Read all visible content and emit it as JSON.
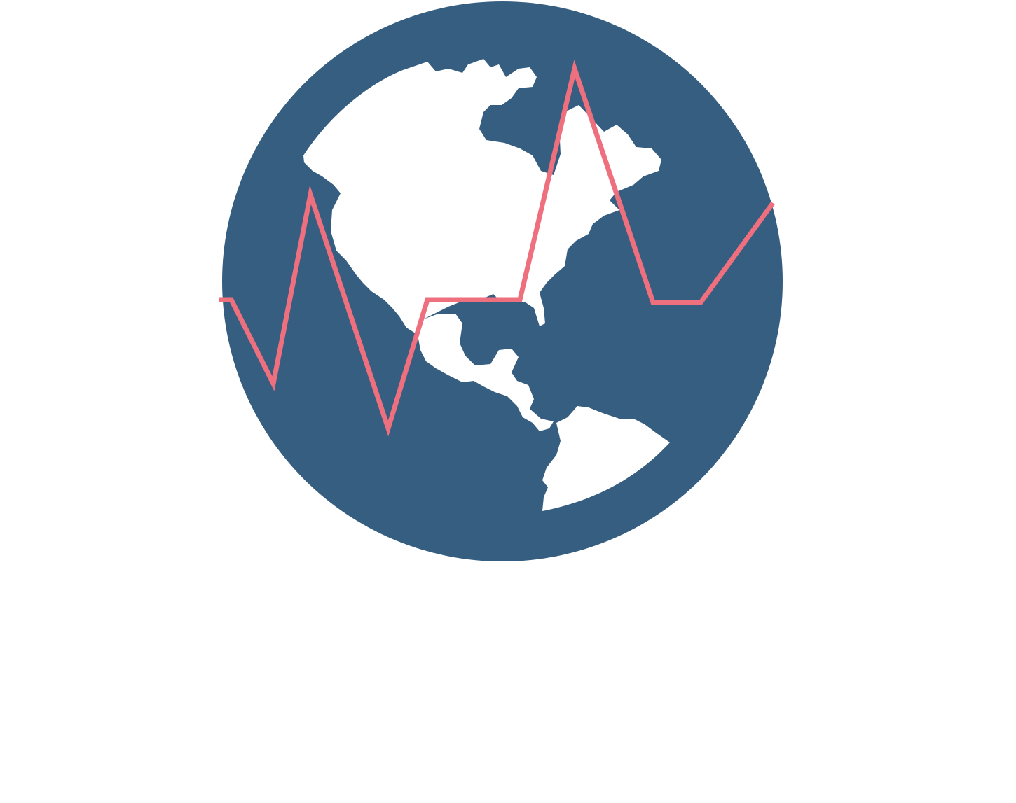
{
  "logo": {
    "name": "globe-heartbeat-logo",
    "colors": {
      "background": "#ffffff",
      "globe": "#355e80",
      "land": "#ffffff",
      "pulse_line": "#ee6f7e"
    },
    "icons": [
      "globe-icon",
      "heartbeat-line-icon"
    ]
  }
}
